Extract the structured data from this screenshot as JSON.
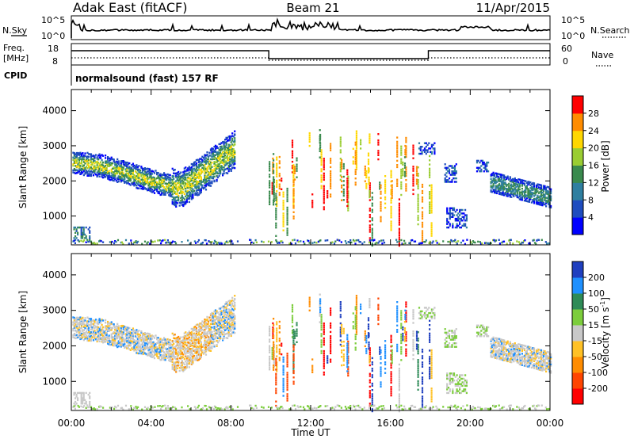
{
  "header": {
    "radar": "Adak East (fitACF)",
    "beam": "Beam 21",
    "date": "11/Apr/2015"
  },
  "top_panels": {
    "nsky_label": "N.Sky",
    "nsky_ticks": [
      "10^5",
      "10^0"
    ],
    "nsearch_label": "N.Search",
    "freq_label_line1": "Freq.",
    "freq_label_line2": "[MHz]",
    "freq_ticks": [
      "18",
      "8"
    ],
    "nave_label": "Nave",
    "nave_ticks": [
      "60",
      "0"
    ],
    "cpid_label": "CPID",
    "cpid_value": "normalsound (fast) 157 RF"
  },
  "chart_data": [
    {
      "type": "heatmap",
      "name": "power",
      "xlabel": "Time UT",
      "ylabel": "Slant Range [km]",
      "x_ticks": [
        "00:00",
        "04:00",
        "08:00",
        "12:00",
        "16:00",
        "20:00",
        "00:00"
      ],
      "x_range_hours": [
        0,
        24
      ],
      "y_ticks": [
        1000,
        2000,
        3000,
        4000
      ],
      "y_range_km": [
        180,
        4600
      ],
      "colorbar": {
        "label": "Power [dB]",
        "ticks": [
          4,
          8,
          12,
          16,
          20,
          24,
          28
        ],
        "range": [
          0,
          32
        ],
        "colors": [
          "#0000ff",
          "#1e4cbf",
          "#2f7fa0",
          "#3a8a4e",
          "#9acd32",
          "#ffd700",
          "#ff8c00",
          "#ff0000"
        ]
      }
    },
    {
      "type": "heatmap",
      "name": "velocity",
      "xlabel": "Time UT",
      "ylabel": "Slant Range [km]",
      "x_ticks": [
        "00:00",
        "04:00",
        "08:00",
        "12:00",
        "16:00",
        "20:00",
        "00:00"
      ],
      "x_range_hours": [
        0,
        24
      ],
      "y_ticks": [
        1000,
        2000,
        3000,
        4000
      ],
      "y_range_km": [
        180,
        4600
      ],
      "colorbar": {
        "label_main": "Velocity [m s",
        "label_exp": "-1",
        "label_end": "]",
        "ticks": [
          -200,
          -100,
          -50,
          -15,
          15,
          50,
          100,
          200
        ],
        "colors": [
          "#ff0000",
          "#ff4500",
          "#ff8c00",
          "#ffc125",
          "#c8c8c8",
          "#7ccd3c",
          "#2e8b57",
          "#1e90ff",
          "#1f3fbf"
        ]
      }
    }
  ]
}
